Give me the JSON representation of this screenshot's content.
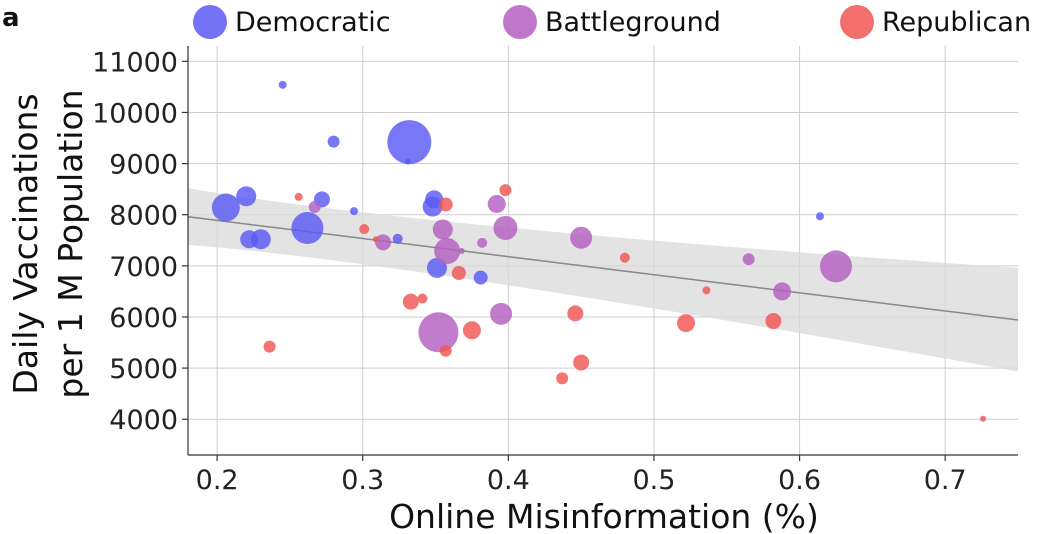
{
  "panel_label": "a",
  "chart_data": {
    "type": "scatter",
    "title": "",
    "xlabel": "Online Misinformation (%)",
    "ylabel_line1": "Daily Vaccinations",
    "ylabel_line2": "per 1 M Population",
    "xlim": [
      0.18,
      0.75
    ],
    "ylim": [
      3300,
      11300
    ],
    "xticks": [
      0.2,
      0.3,
      0.4,
      0.5,
      0.6,
      0.7
    ],
    "xtick_labels": [
      "0.2",
      "0.3",
      "0.4",
      "0.5",
      "0.6",
      "0.7"
    ],
    "yticks": [
      4000,
      5000,
      6000,
      7000,
      8000,
      9000,
      10000,
      11000
    ],
    "ytick_labels": [
      "4000",
      "5000",
      "6000",
      "7000",
      "8000",
      "9000",
      "10000",
      "11000"
    ],
    "grid": true,
    "legend_position": "top",
    "series": [
      {
        "name": "Democratic",
        "color": "#5a5af5",
        "points": [
          {
            "x": 0.206,
            "y": 8140,
            "size": 14
          },
          {
            "x": 0.22,
            "y": 8360,
            "size": 10
          },
          {
            "x": 0.222,
            "y": 7520,
            "size": 9
          },
          {
            "x": 0.23,
            "y": 7520,
            "size": 10
          },
          {
            "x": 0.245,
            "y": 10540,
            "size": 4
          },
          {
            "x": 0.262,
            "y": 7740,
            "size": 16
          },
          {
            "x": 0.272,
            "y": 8300,
            "size": 8
          },
          {
            "x": 0.28,
            "y": 9430,
            "size": 6
          },
          {
            "x": 0.294,
            "y": 8070,
            "size": 4
          },
          {
            "x": 0.324,
            "y": 7530,
            "size": 5
          },
          {
            "x": 0.332,
            "y": 9420,
            "size": 22
          },
          {
            "x": 0.331,
            "y": 9040,
            "size": 3
          },
          {
            "x": 0.349,
            "y": 8300,
            "size": 9
          },
          {
            "x": 0.348,
            "y": 8160,
            "size": 10
          },
          {
            "x": 0.351,
            "y": 6960,
            "size": 10
          },
          {
            "x": 0.381,
            "y": 6770,
            "size": 7
          },
          {
            "x": 0.614,
            "y": 7970,
            "size": 4
          }
        ]
      },
      {
        "name": "Battleground",
        "color": "#b35fc1",
        "points": [
          {
            "x": 0.267,
            "y": 8150,
            "size": 6
          },
          {
            "x": 0.314,
            "y": 7460,
            "size": 8
          },
          {
            "x": 0.352,
            "y": 5700,
            "size": 20
          },
          {
            "x": 0.355,
            "y": 7710,
            "size": 10
          },
          {
            "x": 0.358,
            "y": 7290,
            "size": 13
          },
          {
            "x": 0.368,
            "y": 7290,
            "size": 3
          },
          {
            "x": 0.382,
            "y": 7450,
            "size": 5
          },
          {
            "x": 0.392,
            "y": 8210,
            "size": 9
          },
          {
            "x": 0.395,
            "y": 6060,
            "size": 11
          },
          {
            "x": 0.398,
            "y": 7740,
            "size": 12
          },
          {
            "x": 0.45,
            "y": 7550,
            "size": 11
          },
          {
            "x": 0.565,
            "y": 7130,
            "size": 6
          },
          {
            "x": 0.588,
            "y": 6500,
            "size": 9
          },
          {
            "x": 0.625,
            "y": 6990,
            "size": 16
          }
        ]
      },
      {
        "name": "Republican",
        "color": "#f25555",
        "points": [
          {
            "x": 0.236,
            "y": 5420,
            "size": 6
          },
          {
            "x": 0.256,
            "y": 8350,
            "size": 4
          },
          {
            "x": 0.301,
            "y": 7720,
            "size": 5
          },
          {
            "x": 0.309,
            "y": 7520,
            "size": 3
          },
          {
            "x": 0.333,
            "y": 6300,
            "size": 8
          },
          {
            "x": 0.341,
            "y": 6360,
            "size": 5
          },
          {
            "x": 0.357,
            "y": 8200,
            "size": 7
          },
          {
            "x": 0.357,
            "y": 5340,
            "size": 6
          },
          {
            "x": 0.366,
            "y": 6860,
            "size": 7
          },
          {
            "x": 0.375,
            "y": 5740,
            "size": 9
          },
          {
            "x": 0.398,
            "y": 8480,
            "size": 6
          },
          {
            "x": 0.437,
            "y": 4800,
            "size": 6
          },
          {
            "x": 0.446,
            "y": 6070,
            "size": 8
          },
          {
            "x": 0.45,
            "y": 5110,
            "size": 8
          },
          {
            "x": 0.48,
            "y": 7160,
            "size": 5
          },
          {
            "x": 0.522,
            "y": 5880,
            "size": 9
          },
          {
            "x": 0.536,
            "y": 6520,
            "size": 4
          },
          {
            "x": 0.582,
            "y": 5920,
            "size": 8
          },
          {
            "x": 0.726,
            "y": 4010,
            "size": 3
          }
        ]
      }
    ],
    "regression": {
      "color": "#888888",
      "band_color": "#d9d9d9",
      "x": [
        0.18,
        0.75
      ],
      "y": [
        7960,
        5940
      ],
      "ci_upper": [
        8520,
        6960
      ],
      "ci_lower": [
        7410,
        4930
      ],
      "ci_center": [
        0.33,
        7430
      ],
      "ci_center_half_width": 170
    }
  }
}
